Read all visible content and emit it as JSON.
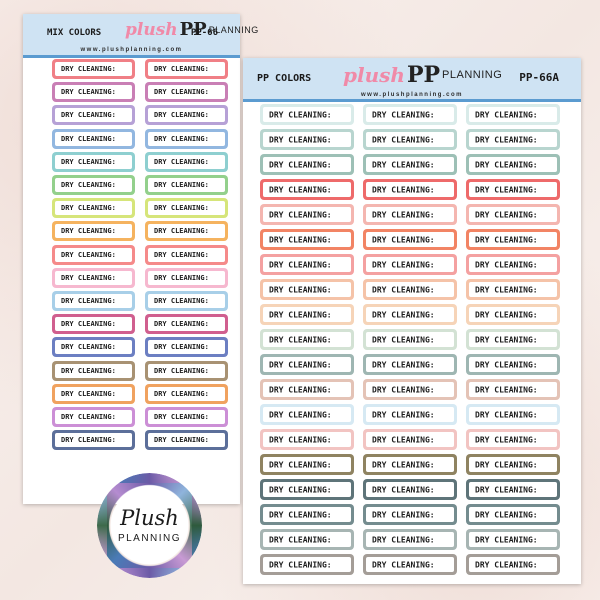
{
  "sheets": {
    "back": {
      "label": "MIX COLORS",
      "brand_plush": "plush",
      "brand_pp": "PP",
      "brand_planning": "PLANNING",
      "code": "PP-66",
      "url": "www.plushplanning.com",
      "sticker_text": "DRY CLEANING:",
      "colors": [
        "#f07f86",
        "#c97fb5",
        "#b6a1d6",
        "#92b7e0",
        "#8ecfd0",
        "#93d08c",
        "#d6e57a",
        "#f5b35f",
        "#f58a8a",
        "#f6b8cf",
        "#a8cfe8",
        "#d05f8f",
        "#6c7fc2",
        "#a89273",
        "#f0a25f",
        "#cc8fd6",
        "#5c6f9a"
      ]
    },
    "front": {
      "label": "PP COLORS",
      "brand_plush": "plush",
      "brand_pp": "PP",
      "brand_planning": "PLANNING",
      "code": "PP-66A",
      "url": "www.plushplanning.com",
      "sticker_text": "DRY CLEANING:",
      "colors": [
        "#d9ebe9",
        "#b8d5cf",
        "#9dc0b6",
        "#ee6a6a",
        "#f4b6b0",
        "#f28464",
        "#f4a1a1",
        "#f5c3a8",
        "#f6d4b8",
        "#d3e2d4",
        "#9eb6b2",
        "#e4c3b6",
        "#d6e9f3",
        "#f2c4c2",
        "#8f8361",
        "#5e7479",
        "#748c8f",
        "#a7b5b3",
        "#a49d97"
      ]
    }
  },
  "logo": {
    "line1": "Plush",
    "line2": "PLANNING"
  }
}
